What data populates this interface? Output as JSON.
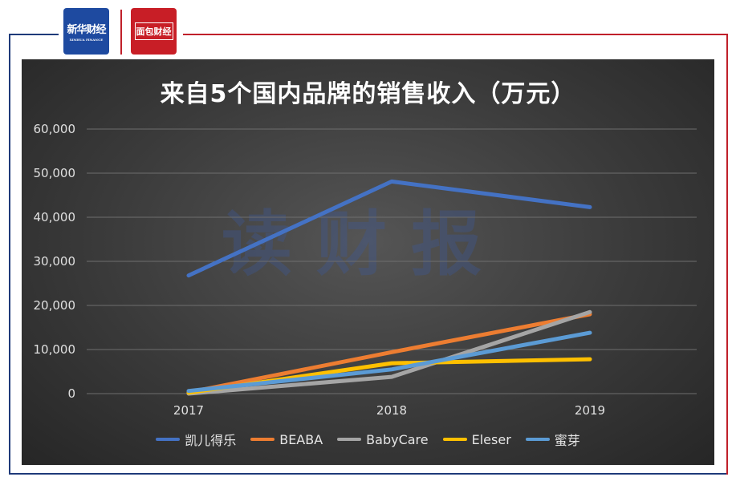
{
  "header": {
    "logo_left_text": "新华财经",
    "logo_left_sub": "XINHUA FINANCE",
    "logo_right_text": "面包财经",
    "colors": {
      "frame_blue": "#1f3a7a",
      "frame_red": "#c0202a",
      "logo_blue": "#1e4aa0",
      "logo_red": "#c81e26"
    }
  },
  "watermark": "读财报",
  "chart_data": {
    "type": "line",
    "title": "来自5个国内品牌的销售收入（万元）",
    "categories": [
      "2017",
      "2018",
      "2019"
    ],
    "ylim": [
      0,
      60000
    ],
    "yticks": [
      "0",
      "10,000",
      "20,000",
      "30,000",
      "40,000",
      "50,000",
      "60,000"
    ],
    "ytick_values": [
      0,
      10000,
      20000,
      30000,
      40000,
      50000,
      60000
    ],
    "grid": true,
    "legend_position": "bottom",
    "series": [
      {
        "name": "凯儿得乐",
        "color": "#4472c4",
        "values": [
          26800,
          48100,
          42300
        ]
      },
      {
        "name": "BEABA",
        "color": "#ed7d31",
        "values": [
          300,
          9400,
          18000
        ]
      },
      {
        "name": "BabyCare",
        "color": "#a5a5a5",
        "values": [
          0,
          3800,
          18500
        ]
      },
      {
        "name": "Eleser",
        "color": "#ffc000",
        "values": [
          200,
          6900,
          7800
        ]
      },
      {
        "name": "蜜芽",
        "color": "#5b9bd5",
        "values": [
          600,
          5500,
          13800
        ]
      }
    ]
  }
}
